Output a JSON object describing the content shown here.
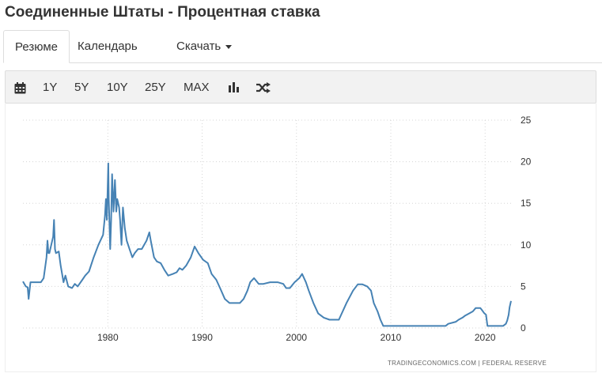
{
  "page": {
    "title": "Соединенные Штаты - Процентная ставка"
  },
  "tabs": [
    {
      "label": "Резюме",
      "active": true
    },
    {
      "label": "Календарь",
      "active": false
    },
    {
      "label": "Скачать",
      "active": false
    }
  ],
  "toolbar": {
    "calendar_icon": "calendar-icon",
    "ranges": [
      "1Y",
      "5Y",
      "10Y",
      "25Y",
      "MAX"
    ],
    "chart_type_icon": "bar-chart-icon",
    "compare_icon": "shuffle-icon"
  },
  "chart_data": {
    "type": "line",
    "line_color": "#4682b4",
    "grid": true,
    "ylim": [
      0,
      25
    ],
    "yticks": [
      "0",
      "5",
      "10",
      "15",
      "20",
      "25"
    ],
    "xticks": [
      "1980",
      "1990",
      "2000",
      "2010",
      "2020"
    ],
    "xlim": [
      1971,
      2023
    ],
    "source": "TRADINGECONOMICS.COM  |  FEDERAL RESERVE",
    "x": [
      1971.0,
      1971.3,
      1971.5,
      1971.6,
      1971.8,
      1972.5,
      1972.9,
      1973.2,
      1973.5,
      1973.6,
      1973.7,
      1973.8,
      1974.2,
      1974.3,
      1974.4,
      1974.5,
      1974.8,
      1975.0,
      1975.3,
      1975.5,
      1975.8,
      1976.2,
      1976.5,
      1976.8,
      1977.3,
      1977.6,
      1978.0,
      1978.5,
      1979.0,
      1979.5,
      1979.7,
      1979.8,
      1979.9,
      1980.05,
      1980.1,
      1980.25,
      1980.35,
      1980.45,
      1980.6,
      1980.75,
      1980.9,
      1981.0,
      1981.2,
      1981.3,
      1981.45,
      1981.6,
      1981.8,
      1982.0,
      1982.3,
      1982.6,
      1982.85,
      1983.2,
      1983.6,
      1984.1,
      1984.4,
      1984.55,
      1984.9,
      1985.2,
      1985.6,
      1986.0,
      1986.4,
      1986.9,
      1987.3,
      1987.6,
      1987.9,
      1988.3,
      1988.8,
      1989.2,
      1989.6,
      1990.1,
      1990.6,
      1991.0,
      1991.5,
      1991.9,
      1992.4,
      1992.9,
      1994.0,
      1994.4,
      1994.8,
      1995.1,
      1995.5,
      1996.0,
      1996.5,
      1997.2,
      1998.0,
      1998.6,
      1998.9,
      1999.3,
      1999.8,
      2000.3,
      2000.6,
      2001.0,
      2001.3,
      2001.8,
      2002.3,
      2002.9,
      2003.5,
      2004.5,
      2005.3,
      2006.0,
      2006.5,
      2007.0,
      2007.5,
      2007.9,
      2008.2,
      2008.6,
      2008.9,
      2009.2,
      2012.0,
      2015.8,
      2016.1,
      2016.9,
      2017.2,
      2017.6,
      2017.9,
      2018.3,
      2018.7,
      2019.0,
      2019.5,
      2019.7,
      2019.9,
      2020.1,
      2020.25,
      2021.0,
      2021.9,
      2022.2,
      2022.35,
      2022.5,
      2022.6,
      2022.75
    ],
    "values": [
      5.6,
      5.0,
      4.9,
      3.5,
      5.5,
      5.5,
      5.5,
      6.0,
      8.5,
      10.5,
      9.0,
      9.0,
      11.0,
      13.0,
      9.5,
      9.0,
      9.2,
      7.5,
      5.5,
      6.3,
      5.0,
      4.8,
      5.3,
      5.0,
      5.8,
      6.3,
      6.8,
      8.5,
      10.0,
      11.2,
      13.5,
      15.5,
      13.0,
      19.8,
      15.5,
      9.5,
      13.0,
      18.5,
      14.0,
      17.8,
      14.0,
      15.5,
      14.5,
      13.0,
      10.0,
      14.5,
      12.0,
      10.5,
      9.5,
      8.5,
      9.0,
      9.5,
      9.5,
      10.5,
      11.5,
      10.5,
      8.5,
      8.0,
      7.8,
      7.0,
      6.3,
      6.5,
      6.7,
      7.2,
      7.0,
      7.5,
      8.5,
      9.8,
      9.0,
      8.2,
      7.8,
      6.5,
      5.8,
      4.8,
      3.5,
      3.0,
      3.0,
      3.5,
      4.5,
      5.5,
      6.0,
      5.3,
      5.3,
      5.5,
      5.5,
      5.3,
      4.8,
      4.8,
      5.5,
      6.0,
      6.5,
      5.5,
      4.5,
      3.0,
      1.75,
      1.25,
      1.0,
      1.0,
      3.0,
      4.5,
      5.25,
      5.25,
      5.0,
      4.5,
      3.0,
      2.0,
      1.0,
      0.25,
      0.25,
      0.25,
      0.5,
      0.75,
      1.0,
      1.25,
      1.5,
      1.75,
      2.0,
      2.4,
      2.4,
      2.1,
      1.8,
      1.6,
      0.25,
      0.25,
      0.25,
      0.5,
      0.9,
      1.6,
      2.5,
      3.25
    ]
  }
}
